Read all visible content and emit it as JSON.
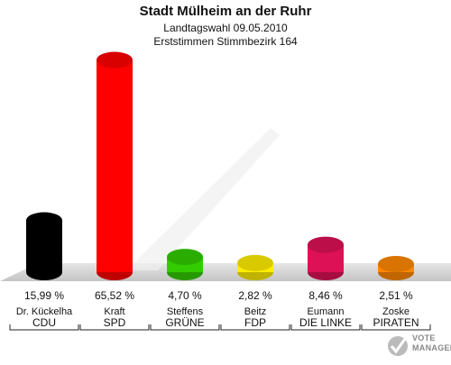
{
  "header": {
    "title": "Stadt Mülheim an der Ruhr",
    "subtitle": "Landtagswahl 09.05.2010",
    "subtitle2": "Erststimmen Stimmbezirk 164"
  },
  "chart_data": {
    "type": "bar",
    "title": "Stadt Mülheim an der Ruhr",
    "categories": [
      "CDU",
      "SPD",
      "GRÜNE",
      "FDP",
      "DIE LINKE",
      "PIRATEN"
    ],
    "candidates": [
      "Dr. Kückelha",
      "Kraft",
      "Steffens",
      "Beitz",
      "Eumann",
      "Zoske"
    ],
    "values": [
      15.99,
      65.52,
      4.7,
      2.82,
      8.46,
      2.51
    ],
    "value_labels": [
      "15,99 %",
      "65,52 %",
      "4,70 %",
      "2,82 %",
      "8,46 %",
      "2,51 %"
    ],
    "colors": [
      "#000000",
      "#ff0000",
      "#33cc00",
      "#ffee00",
      "#dd1155",
      "#ff8800"
    ],
    "ylim": [
      0,
      70
    ],
    "legend": "none"
  },
  "branding": {
    "logo_text_1": "VOTE",
    "logo_text_2": "MANAGER"
  }
}
